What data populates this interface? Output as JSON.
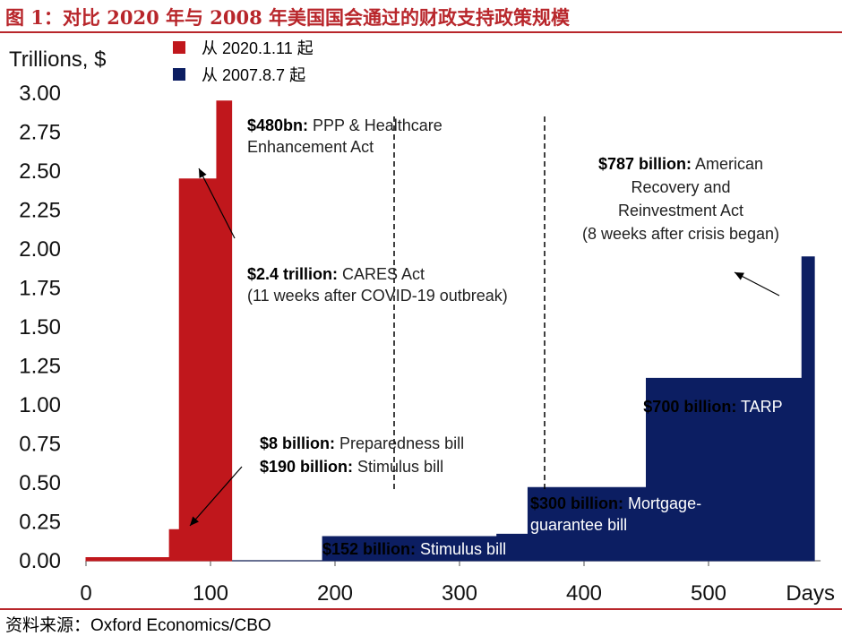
{
  "figure": {
    "title": "图 1：对比 2020 年与 2008 年美国国会通过的财政支持政策规模",
    "source_label": "资料来源：",
    "source_text": "Oxford Economics/CBO"
  },
  "colors": {
    "covid": "#c0171c",
    "gfc": "#0c1e62",
    "accent": "#b8262b"
  },
  "chart_data": {
    "type": "area",
    "ylabel": "Trillions, $",
    "xlabel": "Days",
    "xlim": [
      0,
      590
    ],
    "ylim": [
      0,
      3.0
    ],
    "x_ticks": [
      0,
      100,
      200,
      300,
      400,
      500
    ],
    "y_ticks": [
      "0.00",
      "0.25",
      "0.50",
      "0.75",
      "1.00",
      "1.25",
      "1.50",
      "1.75",
      "2.00",
      "2.25",
      "2.50",
      "2.75",
      "3.00"
    ],
    "legend": {
      "placement": "top-left"
    },
    "series": [
      {
        "name": "从 2020.1.11 起",
        "color": "#c0171c",
        "steps": [
          [
            0,
            0.02
          ],
          [
            67,
            0.2
          ],
          [
            75,
            2.45
          ],
          [
            105,
            2.95
          ],
          [
            117,
            2.95
          ]
        ]
      },
      {
        "name": "从 2007.8.7 起",
        "color": "#0c1e62",
        "steps": [
          [
            0,
            0.0
          ],
          [
            190,
            0.155
          ],
          [
            330,
            0.17
          ],
          [
            355,
            0.47
          ],
          [
            450,
            1.17
          ],
          [
            575,
            1.95
          ],
          [
            585,
            1.95
          ]
        ]
      }
    ],
    "annotations": [
      {
        "bold": "$480bn:",
        "text": [
          "PPP & Healthcare",
          "Enhancement Act"
        ]
      },
      {
        "bold": "$2.4 trillion:",
        "text": [
          "CARES Act",
          "(11 weeks after COVID-19 outbreak)"
        ]
      },
      {
        "bold": "$8 billion:",
        "text": [
          "Preparedness bill"
        ]
      },
      {
        "bold": "$190 billion:",
        "text": [
          "Stimulus bill"
        ]
      },
      {
        "bold": "$152 billion:",
        "text": [
          "Stimulus bill"
        ]
      },
      {
        "bold": "$300 billion:",
        "text": [
          "Mortgage-",
          "guarantee bill"
        ]
      },
      {
        "bold": "$700 billion:",
        "text": [
          "TARP"
        ]
      },
      {
        "bold": "$787 billion:",
        "text": [
          "American",
          "Recovery and",
          "Reinvestment Act",
          "(8 weeks after crisis began)"
        ]
      }
    ]
  }
}
